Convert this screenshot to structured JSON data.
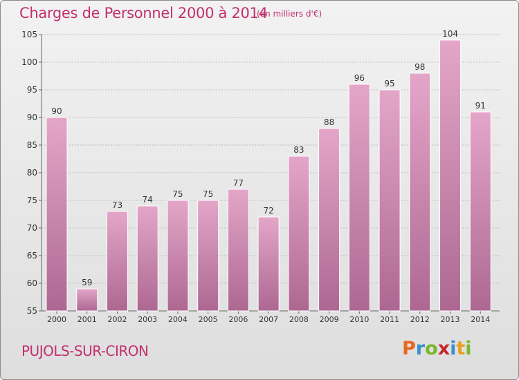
{
  "title": "Charges de Personnel 2000 à 2014",
  "subtitle": "(en milliers d'€)",
  "commune": "PUJOLS-SUR-CIRON",
  "logo": {
    "text": "Proxiti",
    "letters": [
      {
        "ch": "P",
        "color": "#e8671c"
      },
      {
        "ch": "r",
        "color": "#3a8fd0"
      },
      {
        "ch": "o",
        "color": "#79b72c"
      },
      {
        "ch": "x",
        "color": "#c4262e"
      },
      {
        "ch": "i",
        "color": "#3a8fd0"
      },
      {
        "ch": "t",
        "color": "#e8a01c"
      },
      {
        "ch": "i",
        "color": "#79b72c"
      }
    ]
  },
  "colors": {
    "accent": "#c2306d",
    "bar_top": "#e4a6c8",
    "bar_bottom": "#ad6892",
    "grid": "#bcbcbc"
  },
  "chart_data": {
    "type": "bar",
    "categories": [
      "2000",
      "2001",
      "2002",
      "2003",
      "2004",
      "2005",
      "2006",
      "2007",
      "2008",
      "2009",
      "2010",
      "2011",
      "2012",
      "2013",
      "2014"
    ],
    "values": [
      90,
      59,
      73,
      74,
      75,
      75,
      77,
      72,
      83,
      88,
      96,
      95,
      98,
      104,
      91
    ],
    "title": "Charges de Personnel 2000 à 2014",
    "xlabel": "",
    "ylabel": "",
    "ylim": [
      55,
      105
    ],
    "yticks": [
      55,
      60,
      65,
      70,
      75,
      80,
      85,
      90,
      95,
      100,
      105
    ],
    "grid": true,
    "legend": "none"
  }
}
